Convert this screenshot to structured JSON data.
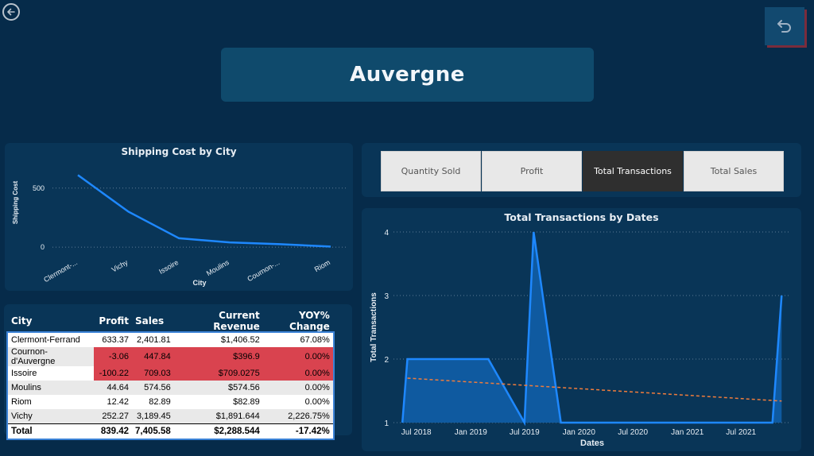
{
  "page": {
    "title": "Auvergne"
  },
  "nav": {
    "back_icon": "arrow-left-circle-icon",
    "undo_icon": "undo-arrow-icon"
  },
  "tabs": [
    {
      "label": "Quantity Sold",
      "active": false
    },
    {
      "label": "Profit",
      "active": false
    },
    {
      "label": "Total Transactions",
      "active": true
    },
    {
      "label": "Total Sales",
      "active": false
    }
  ],
  "shipping_chart": {
    "title": "Shipping Cost by City",
    "xlabel": "City",
    "ylabel": "Shipping Cost",
    "tick_labels": [
      "Clermont-...",
      "Vichy",
      "Issoire",
      "Moulins",
      "Cournon-...",
      "Riom"
    ],
    "y_ticks": [
      "0",
      "500"
    ]
  },
  "table": {
    "headers": [
      "City",
      "Profit",
      "Sales",
      "Current Revenue",
      "YOY% Change"
    ],
    "rows": [
      {
        "city": "Clermont-Ferrand",
        "profit": "633.37",
        "sales": "2,401.81",
        "revenue": "$1,406.52",
        "yoy": "67.08%",
        "negative": false
      },
      {
        "city": "Cournon-d'Auvergne",
        "profit": "-3.06",
        "sales": "447.84",
        "revenue": "$396.9",
        "yoy": "0.00%",
        "negative": true
      },
      {
        "city": "Issoire",
        "profit": "-100.22",
        "sales": "709.03",
        "revenue": "$709.0275",
        "yoy": "0.00%",
        "negative": true
      },
      {
        "city": "Moulins",
        "profit": "44.64",
        "sales": "574.56",
        "revenue": "$574.56",
        "yoy": "0.00%",
        "negative": false
      },
      {
        "city": "Riom",
        "profit": "12.42",
        "sales": "82.89",
        "revenue": "$82.89",
        "yoy": "0.00%",
        "negative": false
      },
      {
        "city": "Vichy",
        "profit": "252.27",
        "sales": "3,189.45",
        "revenue": "$1,891.644",
        "yoy": "2,226.75%",
        "negative": false
      }
    ],
    "total": {
      "city": "Total",
      "profit": "839.42",
      "sales": "7,405.58",
      "revenue": "$2,288.544",
      "yoy": "-17.42%"
    }
  },
  "transactions_chart": {
    "title": "Total Transactions by Dates",
    "xlabel": "Dates",
    "ylabel": "Total Transactions",
    "x_tick_labels": [
      "Jul 2018",
      "Jan 2019",
      "Jul 2019",
      "Jan 2020",
      "Jul 2020",
      "Jan 2021",
      "Jul 2021"
    ],
    "y_tick_labels": [
      "1",
      "2",
      "3",
      "4"
    ]
  },
  "colors": {
    "accent": "#1e88ff",
    "trend": "#f07c3c",
    "negative": "#d9434f",
    "background": "#062b4a"
  },
  "chart_data": [
    {
      "type": "line",
      "title": "Shipping Cost by City",
      "xlabel": "City",
      "ylabel": "Shipping Cost",
      "categories": [
        "Clermont-Ferrand",
        "Vichy",
        "Issoire",
        "Moulins",
        "Cournon-d'Auvergne",
        "Riom"
      ],
      "values": [
        610,
        300,
        75,
        40,
        25,
        5
      ],
      "ylim": [
        -60,
        680
      ],
      "grid": true,
      "color": "#1e88ff"
    },
    {
      "type": "area",
      "title": "Total Transactions by Dates",
      "xlabel": "Dates",
      "ylabel": "Total Transactions",
      "x": [
        "2018-05-15",
        "2018-06-01",
        "2018-12-15",
        "2019-03-01",
        "2019-07-01",
        "2019-08-01",
        "2019-11-01",
        "2021-10-15",
        "2021-11-15"
      ],
      "values": [
        1,
        2,
        2,
        2,
        1,
        4,
        1,
        1,
        3
      ],
      "trend": {
        "x": [
          "2018-06-01",
          "2021-11-15"
        ],
        "values": [
          1.7,
          1.34
        ]
      },
      "x_ticks": [
        "2018-07-01",
        "2019-01-01",
        "2019-07-01",
        "2020-01-01",
        "2020-07-01",
        "2021-01-01",
        "2021-07-01"
      ],
      "ylim": [
        1,
        4
      ],
      "grid": true,
      "color": "#1e88ff",
      "trend_color": "#f07c3c"
    }
  ]
}
